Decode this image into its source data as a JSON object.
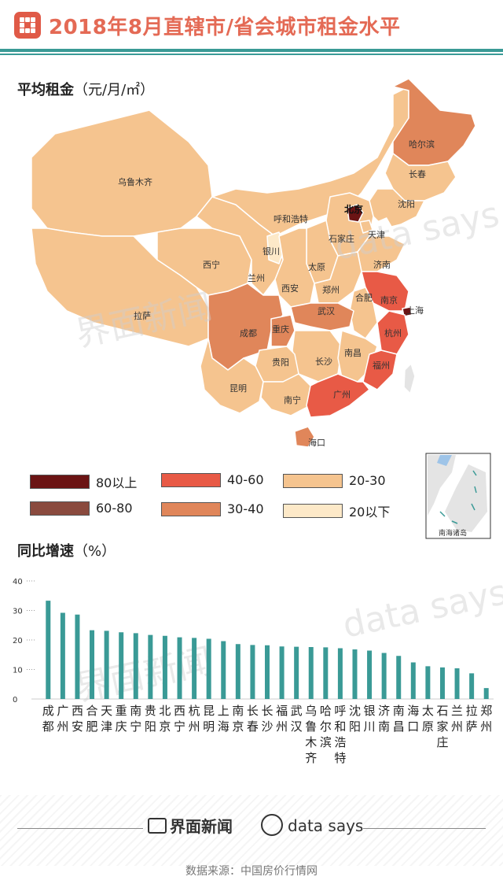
{
  "header": {
    "title": "2018年8月直辖市/省会城市租金水平"
  },
  "map": {
    "title": "平均租金",
    "unit": "（元/月/㎡）",
    "inset_label": "南海诸岛",
    "colors": {
      "80以上": "#6b1414",
      "60-80": "#8a4a3e",
      "40-60": "#e85a46",
      "30-40": "#e0865a",
      "20-30": "#f5c48f",
      "20以下": "#fde9c8"
    },
    "cities": [
      {
        "name": "哈尔滨",
        "level": "30-40"
      },
      {
        "name": "长春",
        "level": "20-30"
      },
      {
        "name": "沈阳",
        "level": "20-30"
      },
      {
        "name": "乌鲁木齐",
        "level": "20-30"
      },
      {
        "name": "呼和浩特",
        "level": "20-30"
      },
      {
        "name": "北京",
        "level": "80以上"
      },
      {
        "name": "天津",
        "level": "20-30"
      },
      {
        "name": "石家庄",
        "level": "20-30"
      },
      {
        "name": "银川",
        "level": "20以下"
      },
      {
        "name": "太原",
        "level": "20-30"
      },
      {
        "name": "济南",
        "level": "20-30"
      },
      {
        "name": "西宁",
        "level": "20-30"
      },
      {
        "name": "兰州",
        "level": "20-30"
      },
      {
        "name": "西安",
        "level": "20-30"
      },
      {
        "name": "郑州",
        "level": "20-30"
      },
      {
        "name": "合肥",
        "level": "20-30"
      },
      {
        "name": "南京",
        "level": "40-60"
      },
      {
        "name": "上海",
        "level": "80以上"
      },
      {
        "name": "拉萨",
        "level": "20-30"
      },
      {
        "name": "成都",
        "level": "30-40"
      },
      {
        "name": "重庆",
        "level": "30-40"
      },
      {
        "name": "武汉",
        "level": "30-40"
      },
      {
        "name": "杭州",
        "level": "40-60"
      },
      {
        "name": "贵阳",
        "level": "20-30"
      },
      {
        "name": "长沙",
        "level": "20-30"
      },
      {
        "name": "南昌",
        "level": "20-30"
      },
      {
        "name": "福州",
        "level": "40-60"
      },
      {
        "name": "昆明",
        "level": "20-30"
      },
      {
        "name": "南宁",
        "level": "20-30"
      },
      {
        "name": "广州",
        "level": "40-60"
      },
      {
        "name": "海口",
        "level": "30-40"
      }
    ],
    "legend": [
      {
        "label": "80以上",
        "color": "#6b1414"
      },
      {
        "label": "40-60",
        "color": "#e85a46"
      },
      {
        "label": "20-30",
        "color": "#f5c48f"
      },
      {
        "label": "60-80",
        "color": "#8a4a3e"
      },
      {
        "label": "30-40",
        "color": "#e0865a"
      },
      {
        "label": "20以下",
        "color": "#fde9c8"
      }
    ]
  },
  "chart_title": {
    "title": "同比增速",
    "unit": "（%）"
  },
  "chart_data": {
    "type": "bar",
    "title": "同比增速（%）",
    "xlabel": "",
    "ylabel": "",
    "ylim": [
      0,
      40
    ],
    "yticks": [
      0,
      10,
      20,
      30,
      40
    ],
    "grid": false,
    "color": "#3a9a96",
    "categories": [
      "成都",
      "广州",
      "西安",
      "合肥",
      "天津",
      "重庆",
      "南宁",
      "贵阳",
      "北京",
      "西宁",
      "杭州",
      "昆明",
      "上海",
      "南京",
      "长春",
      "长沙",
      "福州",
      "武汉",
      "乌鲁木齐",
      "哈尔滨",
      "呼和浩特",
      "沈阳",
      "银川",
      "济南",
      "南昌",
      "海口",
      "太原",
      "石家庄",
      "兰州",
      "拉萨",
      "郑州"
    ],
    "values": [
      33.3,
      29.2,
      28.6,
      23.3,
      23.1,
      22.6,
      22.3,
      21.7,
      21.4,
      20.9,
      20.7,
      20.4,
      19.6,
      18.6,
      18.3,
      18.2,
      17.8,
      17.7,
      17.6,
      17.5,
      17.2,
      16.8,
      16.4,
      15.6,
      14.6,
      12.4,
      11.1,
      10.7,
      10.4,
      8.7,
      3.7
    ]
  },
  "watermarks": {
    "a": "界面新闻",
    "b": "data says"
  },
  "footer": {
    "brand1": "界面新闻",
    "brand2": "data says",
    "source": "数据来源：中国房价行情网"
  }
}
